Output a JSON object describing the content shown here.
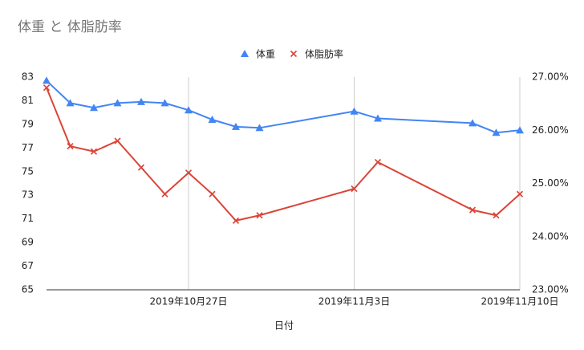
{
  "chart_data": {
    "type": "line",
    "title": "体重 と 体脂肪率",
    "xlabel": "日付",
    "x": [
      "2019-10-21",
      "2019-10-22",
      "2019-10-23",
      "2019-10-24",
      "2019-10-25",
      "2019-10-26",
      "2019-10-27",
      "2019-10-28",
      "2019-10-29",
      "2019-10-30",
      "2019-11-03",
      "2019-11-04",
      "2019-11-08",
      "2019-11-09",
      "2019-11-10"
    ],
    "xlim": [
      "2019-10-21",
      "2019-11-10"
    ],
    "xticks": [
      {
        "value": "2019-10-27",
        "label": "2019年10月27日"
      },
      {
        "value": "2019-11-03",
        "label": "2019年11月3日"
      },
      {
        "value": "2019-11-10",
        "label": "2019年11月10日"
      }
    ],
    "series": [
      {
        "name": "体重",
        "color": "#4285f4",
        "marker": "triangle",
        "values": [
          82.7,
          80.8,
          80.4,
          80.8,
          80.9,
          80.8,
          80.2,
          79.4,
          78.8,
          78.7,
          80.1,
          79.5,
          79.1,
          78.3,
          78.5
        ]
      },
      {
        "name": "体脂肪率",
        "color": "#db4437",
        "marker": "x",
        "axis": "y2",
        "values": [
          26.8,
          25.7,
          25.6,
          25.8,
          25.3,
          24.8,
          25.2,
          24.8,
          24.3,
          24.4,
          24.9,
          25.4,
          24.5,
          24.4,
          24.8
        ]
      }
    ],
    "ylim": [
      65,
      83
    ],
    "yticks": [
      65,
      67,
      69,
      71,
      73,
      75,
      77,
      79,
      81,
      83
    ],
    "y2lim": [
      23,
      27
    ],
    "y2ticks": [
      {
        "value": 23,
        "label": "23.00%"
      },
      {
        "value": 24,
        "label": "24.00%"
      },
      {
        "value": 25,
        "label": "25.00%"
      },
      {
        "value": 26,
        "label": "26.00%"
      },
      {
        "value": 27,
        "label": "27.00%"
      }
    ],
    "xgrid": true,
    "ygrid": false,
    "legend": "top"
  }
}
